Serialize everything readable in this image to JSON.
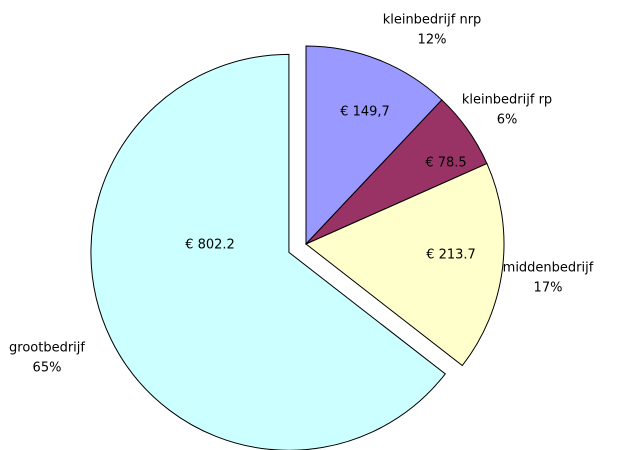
{
  "chart_data": {
    "type": "pie",
    "categories": [
      "kleinbedrijf nrp",
      "kleinbedrijf rp",
      "middenbedrijf",
      "grootbedrijf"
    ],
    "values": [
      149.7,
      78.5,
      213.7,
      802.2
    ],
    "value_labels": [
      "€ 149,7",
      "€ 78.5",
      "€ 213.7",
      "€ 802.2"
    ],
    "percent_labels": [
      "12%",
      "6%",
      "17%",
      "65%"
    ],
    "colors": [
      "#9999ff",
      "#993366",
      "#ffffcc",
      "#ccffff"
    ],
    "exploded": [
      false,
      false,
      false,
      true
    ]
  }
}
